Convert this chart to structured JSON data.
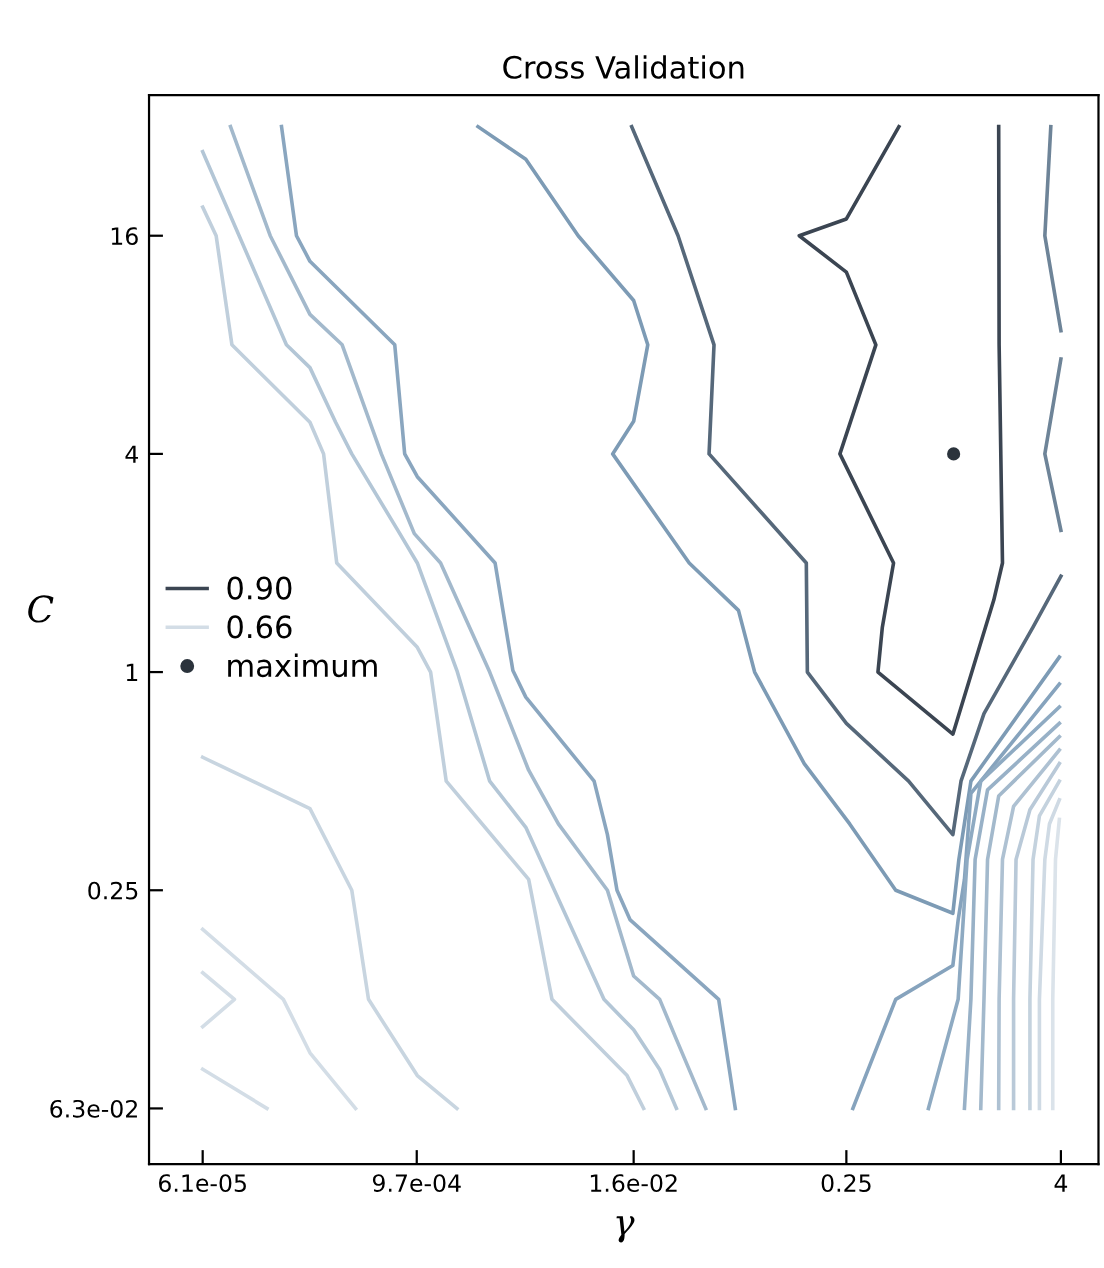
{
  "chart_data": {
    "type": "line",
    "title": "Cross Validation",
    "xlabel": "γ",
    "ylabel": "C",
    "log": "xy",
    "grid": false,
    "legend": "left",
    "marker": "none",
    "line_style": "solid",
    "xlim": [
      3.05e-05,
      6.5
    ],
    "ylim": [
      0.0439,
      39.1
    ],
    "xticks": [
      {
        "value": 6.1e-05,
        "label": "6.1e-05"
      },
      {
        "value": 0.00097,
        "label": "9.7e-04"
      },
      {
        "value": 0.016,
        "label": "1.6e-02"
      },
      0.25,
      4
    ],
    "yticks": [
      {
        "value": 0.0625,
        "label": "6.3e-02"
      },
      0.25,
      1,
      4,
      16
    ],
    "series": [
      {
        "name": "0.90",
        "color": "#3b4552",
        "x": [
          0.493,
          0.25,
          0.136,
          0.25,
          0.366,
          0.23,
          0.46,
          0.398,
          0.376,
          0.99,
          1.68,
          1.88,
          1.8,
          1.79
        ],
        "values": [
          32,
          17.8,
          16,
          12.7,
          8,
          4,
          2,
          1.33,
          1,
          0.674,
          1.58,
          2,
          8,
          32
        ]
      },
      {
        "name": "0.66",
        "color": "#d3dde6",
        "x": [
          6.1e-05,
          0.00014
        ],
        "values": [
          0.0802,
          0.0625
        ]
      },
      {
        "color": "#d3dde6",
        "x": [
          6.1e-05,
          9.2e-05,
          6.1e-05
        ],
        "values": [
          0.148,
          0.125,
          0.105
        ]
      },
      {
        "color": "#d3dde6",
        "x": [
          6.1e-05,
          0.000173,
          0.000244,
          0.00044
        ],
        "values": [
          0.195,
          0.125,
          0.089,
          0.0625
        ]
      },
      {
        "color": "#c8d5e0",
        "x": [
          6.1e-05,
          0.000244,
          0.000419,
          0.00052,
          0.000977,
          0.00163
        ],
        "values": [
          0.582,
          0.42,
          0.25,
          0.125,
          0.077,
          0.0625
        ]
      },
      {
        "color": "#c0cfdc",
        "x": [
          6.1e-05,
          7.26e-05,
          8.9e-05,
          0.000244,
          0.000291,
          0.000345,
          0.000977,
          0.00116,
          0.00142,
          0.00412,
          0.00557,
          0.0147,
          0.0182
        ],
        "values": [
          19.2,
          16,
          8,
          4.89,
          4,
          2,
          1.17,
          1,
          0.5,
          0.268,
          0.125,
          0.077,
          0.0625
        ]
      },
      {
        "color": "#b3c6d6",
        "x": [
          6.1e-05,
          0.00018,
          0.000244,
          0.00034,
          0.000419,
          0.00076,
          0.000977,
          0.00163,
          0.00249,
          0.00397,
          0.0109,
          0.016,
          0.0224,
          0.0278
        ],
        "values": [
          27.3,
          8,
          6.92,
          4.89,
          4,
          2.46,
          2,
          1.01,
          0.5,
          0.373,
          0.125,
          0.103,
          0.08,
          0.0625
        ]
      },
      {
        "color": "#a3b9cc",
        "x": [
          8.74e-05,
          0.000146,
          0.000244,
          0.00037,
          0.000614,
          0.00094,
          0.00132,
          0.00249,
          0.00412,
          0.00605,
          0.0114,
          0.016,
          0.0224,
          0.0278,
          0.0406
        ],
        "values": [
          32,
          16,
          9.71,
          8,
          4,
          2.41,
          2,
          1,
          0.536,
          0.381,
          0.25,
          0.145,
          0.125,
          0.0969,
          0.0625
        ]
      },
      {
        "color": "#8aa6bf",
        "x": [
          0.000169,
          0.000205,
          0.000244,
          0.00073,
          0.00083,
          0.000977,
          0.00267,
          0.00336,
          0.00397,
          0.0096,
          0.0114,
          0.0129,
          0.0153,
          0.048,
          0.0595
        ],
        "values": [
          32,
          16,
          13.6,
          8,
          4,
          3.46,
          2,
          1.01,
          0.853,
          0.5,
          0.356,
          0.25,
          0.207,
          0.125,
          0.0625
        ]
      },
      {
        "color": "#7d9bb5",
        "x": [
          0.00214,
          0.00397,
          0.00781,
          0.016,
          0.0192,
          0.016,
          0.0122,
          0.0328,
          0.062,
          0.0764,
          0.145,
          0.261,
          0.473,
          0.99,
          1.07,
          1.25,
          3.92
        ],
        "values": [
          32,
          26.0,
          16,
          10.6,
          8,
          4.92,
          4,
          2,
          1.48,
          1,
          0.559,
          0.381,
          0.25,
          0.216,
          0.304,
          0.5,
          1.1
        ]
      },
      {
        "color": "#86a3bd",
        "x": [
          0.272,
          0.473,
          0.99,
          1.06,
          1.15,
          1.25,
          3.92
        ],
        "values": [
          0.0625,
          0.125,
          0.155,
          0.207,
          0.268,
          0.463,
          0.927
        ]
      },
      {
        "color": "#8eaac2",
        "x": [
          0.722,
          1.06,
          1.19,
          1.42,
          3.92
        ],
        "values": [
          0.0625,
          0.125,
          0.304,
          0.5,
          0.801
        ]
      },
      {
        "color": "#98b1c7",
        "x": [
          1.15,
          1.25,
          1.32,
          1.55,
          3.92
        ],
        "values": [
          0.0625,
          0.125,
          0.304,
          0.473,
          0.722
        ]
      },
      {
        "color": "#a3b9cc",
        "x": [
          1.42,
          1.48,
          1.55,
          1.79,
          3.92
        ],
        "values": [
          0.0625,
          0.125,
          0.304,
          0.455,
          0.663
        ]
      },
      {
        "color": "#aec1d2",
        "x": [
          1.79,
          1.8,
          1.88,
          2.17,
          3.92
        ],
        "values": [
          0.0625,
          0.125,
          0.304,
          0.426,
          0.609
        ]
      },
      {
        "color": "#b9c9d8",
        "x": [
          2.17,
          2.17,
          2.24,
          2.68,
          3.92
        ],
        "values": [
          0.0625,
          0.125,
          0.304,
          0.417,
          0.559
        ]
      },
      {
        "color": "#c4d2de",
        "x": [
          2.68,
          2.68,
          2.79,
          3.03,
          3.92
        ],
        "values": [
          0.0625,
          0.125,
          0.304,
          0.401,
          0.5
        ]
      },
      {
        "color": "#cfdae4",
        "x": [
          3.03,
          3.03,
          3.25,
          3.45,
          3.92
        ],
        "values": [
          0.0625,
          0.125,
          0.304,
          0.381,
          0.444
        ]
      },
      {
        "color": "#dbe3ea",
        "x": [
          3.6,
          3.6,
          3.73,
          3.92
        ],
        "values": [
          0.0625,
          0.125,
          0.304,
          0.392
        ]
      },
      {
        "color": "#56687a",
        "x": [
          0.0156,
          0.0284,
          0.0452,
          0.0424,
          0.149,
          0.151,
          0.25,
          0.559,
          0.99,
          1.1,
          1.48,
          2.79,
          4
        ],
        "values": [
          32,
          16,
          8,
          4,
          2,
          1,
          0.722,
          0.5,
          0.356,
          0.5,
          0.768,
          1.33,
          1.84
        ]
      },
      {
        "color": "#6e8498",
        "x": [
          3.51,
          3.25,
          4
        ],
        "values": [
          32,
          16,
          8.75
        ]
      },
      {
        "color": "#6e8498",
        "x": [
          4,
          3.25,
          4
        ],
        "values": [
          7.31,
          4,
          2.46
        ]
      },
      {
        "name": "maximum",
        "type": "scatter",
        "marker": "circle",
        "color": "#2b333c",
        "x": [
          1.0
        ],
        "values": [
          4
        ]
      }
    ]
  }
}
